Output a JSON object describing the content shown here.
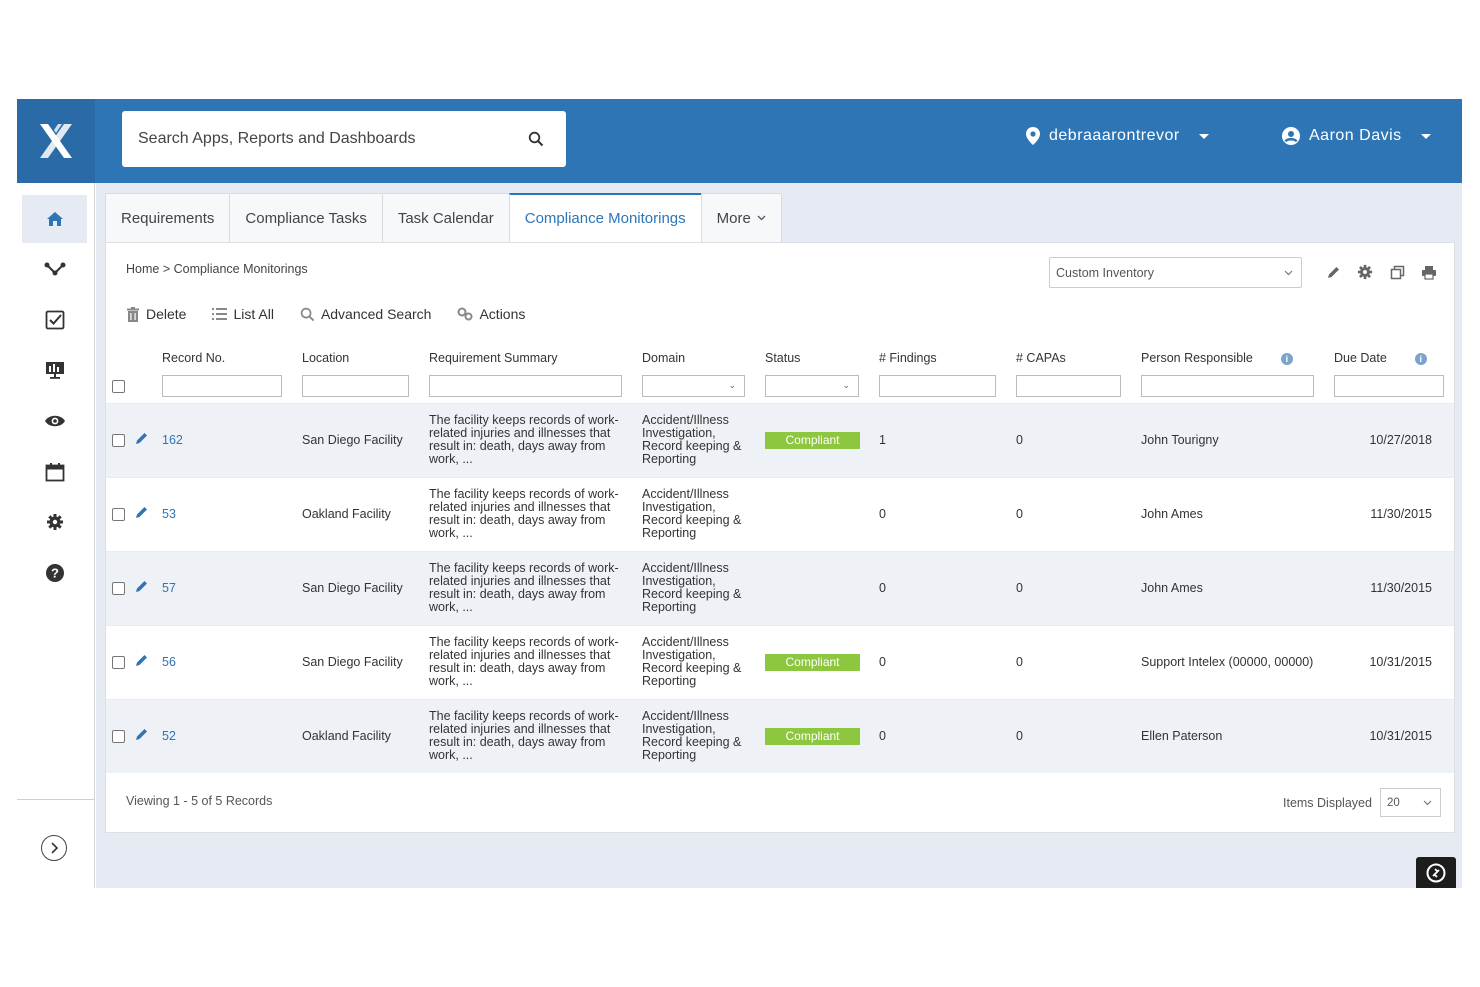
{
  "header": {
    "search_placeholder": "Search Apps, Reports and Dashboards",
    "site": "debraaarontrevor",
    "user": "Aaron Davis"
  },
  "sidebar": {
    "items": [
      "home-icon",
      "workflow-icon",
      "checklist-icon",
      "dashboard-icon",
      "eye-icon",
      "calendar-icon",
      "gear-icon",
      "help-icon"
    ],
    "active": "home-icon"
  },
  "tabs": [
    {
      "label": "Requirements"
    },
    {
      "label": "Compliance Tasks"
    },
    {
      "label": "Task Calendar"
    },
    {
      "label": "Compliance Monitorings",
      "active": true
    },
    {
      "label": "More"
    }
  ],
  "breadcrumb": {
    "home": "Home",
    "separator": " > ",
    "current": "Compliance Monitorings"
  },
  "view_select": "Custom Inventory",
  "toolbar": {
    "delete": "Delete",
    "list_all": "List All",
    "advanced_search": "Advanced Search",
    "actions": "Actions"
  },
  "columns": {
    "record_no": "Record No.",
    "location": "Location",
    "summary": "Requirement Summary",
    "domain": "Domain",
    "status": "Status",
    "findings": "# Findings",
    "capas": "# CAPAs",
    "person": "Person Responsible",
    "due_date": "Due Date"
  },
  "rows": [
    {
      "record": "162",
      "location": "San Diego Facility",
      "summary": "The facility keeps records of work-related injuries and illnesses that result in: death, days away from work, ...",
      "domain": "Accident/Illness Investigation, Record keeping & Reporting",
      "status": "Compliant",
      "findings": "1",
      "capas": "0",
      "person": "John Tourigny",
      "due": "10/27/2018"
    },
    {
      "record": "53",
      "location": "Oakland Facility",
      "summary": "The facility keeps records of work-related injuries and illnesses that result in: death, days away from work, ...",
      "domain": "Accident/Illness Investigation, Record keeping & Reporting",
      "status": "",
      "findings": "0",
      "capas": "0",
      "person": "John Ames",
      "due": "11/30/2015"
    },
    {
      "record": "57",
      "location": "San Diego Facility",
      "summary": "The facility keeps records of work-related injuries and illnesses that result in: death, days away from work, ...",
      "domain": "Accident/Illness Investigation, Record keeping & Reporting",
      "status": "",
      "findings": "0",
      "capas": "0",
      "person": "John Ames",
      "due": "11/30/2015"
    },
    {
      "record": "56",
      "location": "San Diego Facility",
      "summary": "The facility keeps records of work-related injuries and illnesses that result in: death, days away from work, ...",
      "domain": "Accident/Illness Investigation, Record keeping & Reporting",
      "status": "Compliant",
      "findings": "0",
      "capas": "0",
      "person": "Support Intelex (00000, 00000)",
      "due": "10/31/2015"
    },
    {
      "record": "52",
      "location": "Oakland Facility",
      "summary": "The facility keeps records of work-related injuries and illnesses that result in: death, days away from work, ...",
      "domain": "Accident/Illness Investigation, Record keeping & Reporting",
      "status": "Compliant",
      "findings": "0",
      "capas": "0",
      "person": "Ellen Paterson",
      "due": "10/31/2015"
    }
  ],
  "footer": {
    "viewing": "Viewing 1 - 5 of 5 Records",
    "items_label": "Items Displayed",
    "items_value": "20"
  },
  "colors": {
    "brand": "#2e75b6",
    "compliant": "#8dc63f",
    "content_bg": "#e6ebf3"
  }
}
